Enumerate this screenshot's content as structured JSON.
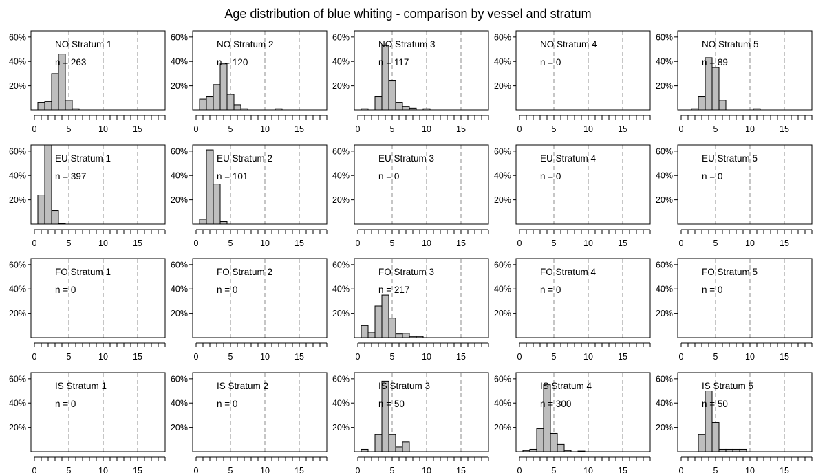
{
  "chart_data": {
    "type": "bar",
    "title": "Age distribution of blue whiting - comparison by vessel and stratum",
    "x_ticks": [
      0,
      5,
      10,
      15
    ],
    "y_tick_labels": [
      "20%",
      "40%",
      "60%"
    ],
    "xlim": [
      -0.5,
      19
    ],
    "ylim": [
      0,
      0.65
    ],
    "reference_lines_x": [
      5,
      10,
      15
    ],
    "bar_color": "#bebebe",
    "panels": [
      {
        "label": "NO Stratum 1",
        "n": "n = 263",
        "ages": [
          1,
          2,
          3,
          4,
          5,
          6
        ],
        "values": [
          0.06,
          0.07,
          0.3,
          0.46,
          0.08,
          0.01
        ]
      },
      {
        "label": "NO Stratum 2",
        "n": "n = 120",
        "ages": [
          1,
          2,
          3,
          4,
          5,
          6,
          7,
          12
        ],
        "values": [
          0.09,
          0.11,
          0.21,
          0.38,
          0.13,
          0.04,
          0.01,
          0.01
        ]
      },
      {
        "label": "NO Stratum 3",
        "n": "n = 117",
        "ages": [
          1,
          3,
          4,
          5,
          6,
          7,
          8,
          10
        ],
        "values": [
          0.01,
          0.11,
          0.53,
          0.24,
          0.06,
          0.03,
          0.015,
          0.01
        ]
      },
      {
        "label": "NO Stratum 4",
        "n": "n = 0",
        "ages": [],
        "values": []
      },
      {
        "label": "NO Stratum 5",
        "n": "n = 89",
        "ages": [
          2,
          3,
          4,
          5,
          6,
          11
        ],
        "values": [
          0.01,
          0.11,
          0.43,
          0.35,
          0.08,
          0.01
        ]
      },
      {
        "label": "EU Stratum 1",
        "n": "n = 397",
        "ages": [
          1,
          2,
          3,
          4
        ],
        "values": [
          0.24,
          0.65,
          0.11,
          0.005
        ]
      },
      {
        "label": "EU Stratum 2",
        "n": "n = 101",
        "ages": [
          1,
          2,
          3,
          4
        ],
        "values": [
          0.04,
          0.61,
          0.33,
          0.02
        ]
      },
      {
        "label": "EU Stratum 3",
        "n": "n = 0",
        "ages": [],
        "values": []
      },
      {
        "label": "EU Stratum 4",
        "n": "n = 0",
        "ages": [],
        "values": []
      },
      {
        "label": "EU Stratum 5",
        "n": "n = 0",
        "ages": [],
        "values": []
      },
      {
        "label": "FO Stratum 1",
        "n": "n = 0",
        "ages": [],
        "values": []
      },
      {
        "label": "FO Stratum 2",
        "n": "n = 0",
        "ages": [],
        "values": []
      },
      {
        "label": "FO Stratum 3",
        "n": "n = 217",
        "ages": [
          1,
          2,
          3,
          4,
          5,
          6,
          7,
          8,
          9
        ],
        "values": [
          0.1,
          0.04,
          0.26,
          0.35,
          0.16,
          0.03,
          0.035,
          0.01,
          0.01
        ]
      },
      {
        "label": "FO Stratum 4",
        "n": "n = 0",
        "ages": [],
        "values": []
      },
      {
        "label": "FO Stratum 5",
        "n": "n = 0",
        "ages": [],
        "values": []
      },
      {
        "label": "IS Stratum 1",
        "n": "n = 0",
        "ages": [],
        "values": []
      },
      {
        "label": "IS Stratum 2",
        "n": "n = 0",
        "ages": [],
        "values": []
      },
      {
        "label": "IS Stratum 3",
        "n": "n = 50",
        "ages": [
          1,
          3,
          4,
          5,
          6,
          7
        ],
        "values": [
          0.02,
          0.14,
          0.58,
          0.14,
          0.04,
          0.08
        ]
      },
      {
        "label": "IS Stratum 4",
        "n": "n = 300",
        "ages": [
          1,
          2,
          3,
          4,
          5,
          6,
          7,
          9
        ],
        "values": [
          0.01,
          0.02,
          0.19,
          0.55,
          0.15,
          0.06,
          0.01,
          0.005
        ]
      },
      {
        "label": "IS Stratum 5",
        "n": "n = 50",
        "ages": [
          3,
          4,
          5,
          6,
          7,
          8,
          9
        ],
        "values": [
          0.14,
          0.5,
          0.24,
          0.02,
          0.02,
          0.02,
          0.02
        ]
      }
    ]
  }
}
